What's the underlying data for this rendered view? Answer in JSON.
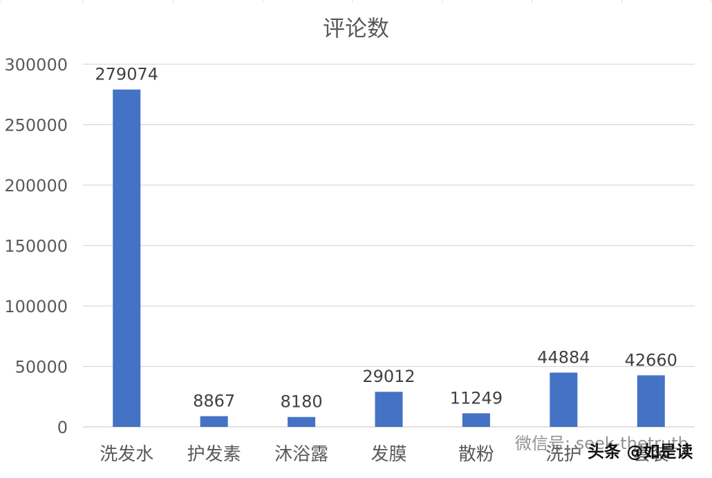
{
  "chart_data": {
    "type": "bar",
    "title": "评论数",
    "categories": [
      "洗发水",
      "护发素",
      "沐浴露",
      "发膜",
      "散粉",
      "洗护",
      "套装"
    ],
    "values": [
      279074,
      8867,
      8180,
      29012,
      11249,
      44884,
      42660
    ],
    "ylim": [
      0,
      300000
    ],
    "yticks": [
      0,
      50000,
      100000,
      150000,
      200000,
      250000,
      300000
    ],
    "grid": true,
    "bar_color": "#4472c4"
  },
  "watermark": {
    "wechat": "微信号: seek-thetruth",
    "toutiao": "头条 @如是读"
  }
}
